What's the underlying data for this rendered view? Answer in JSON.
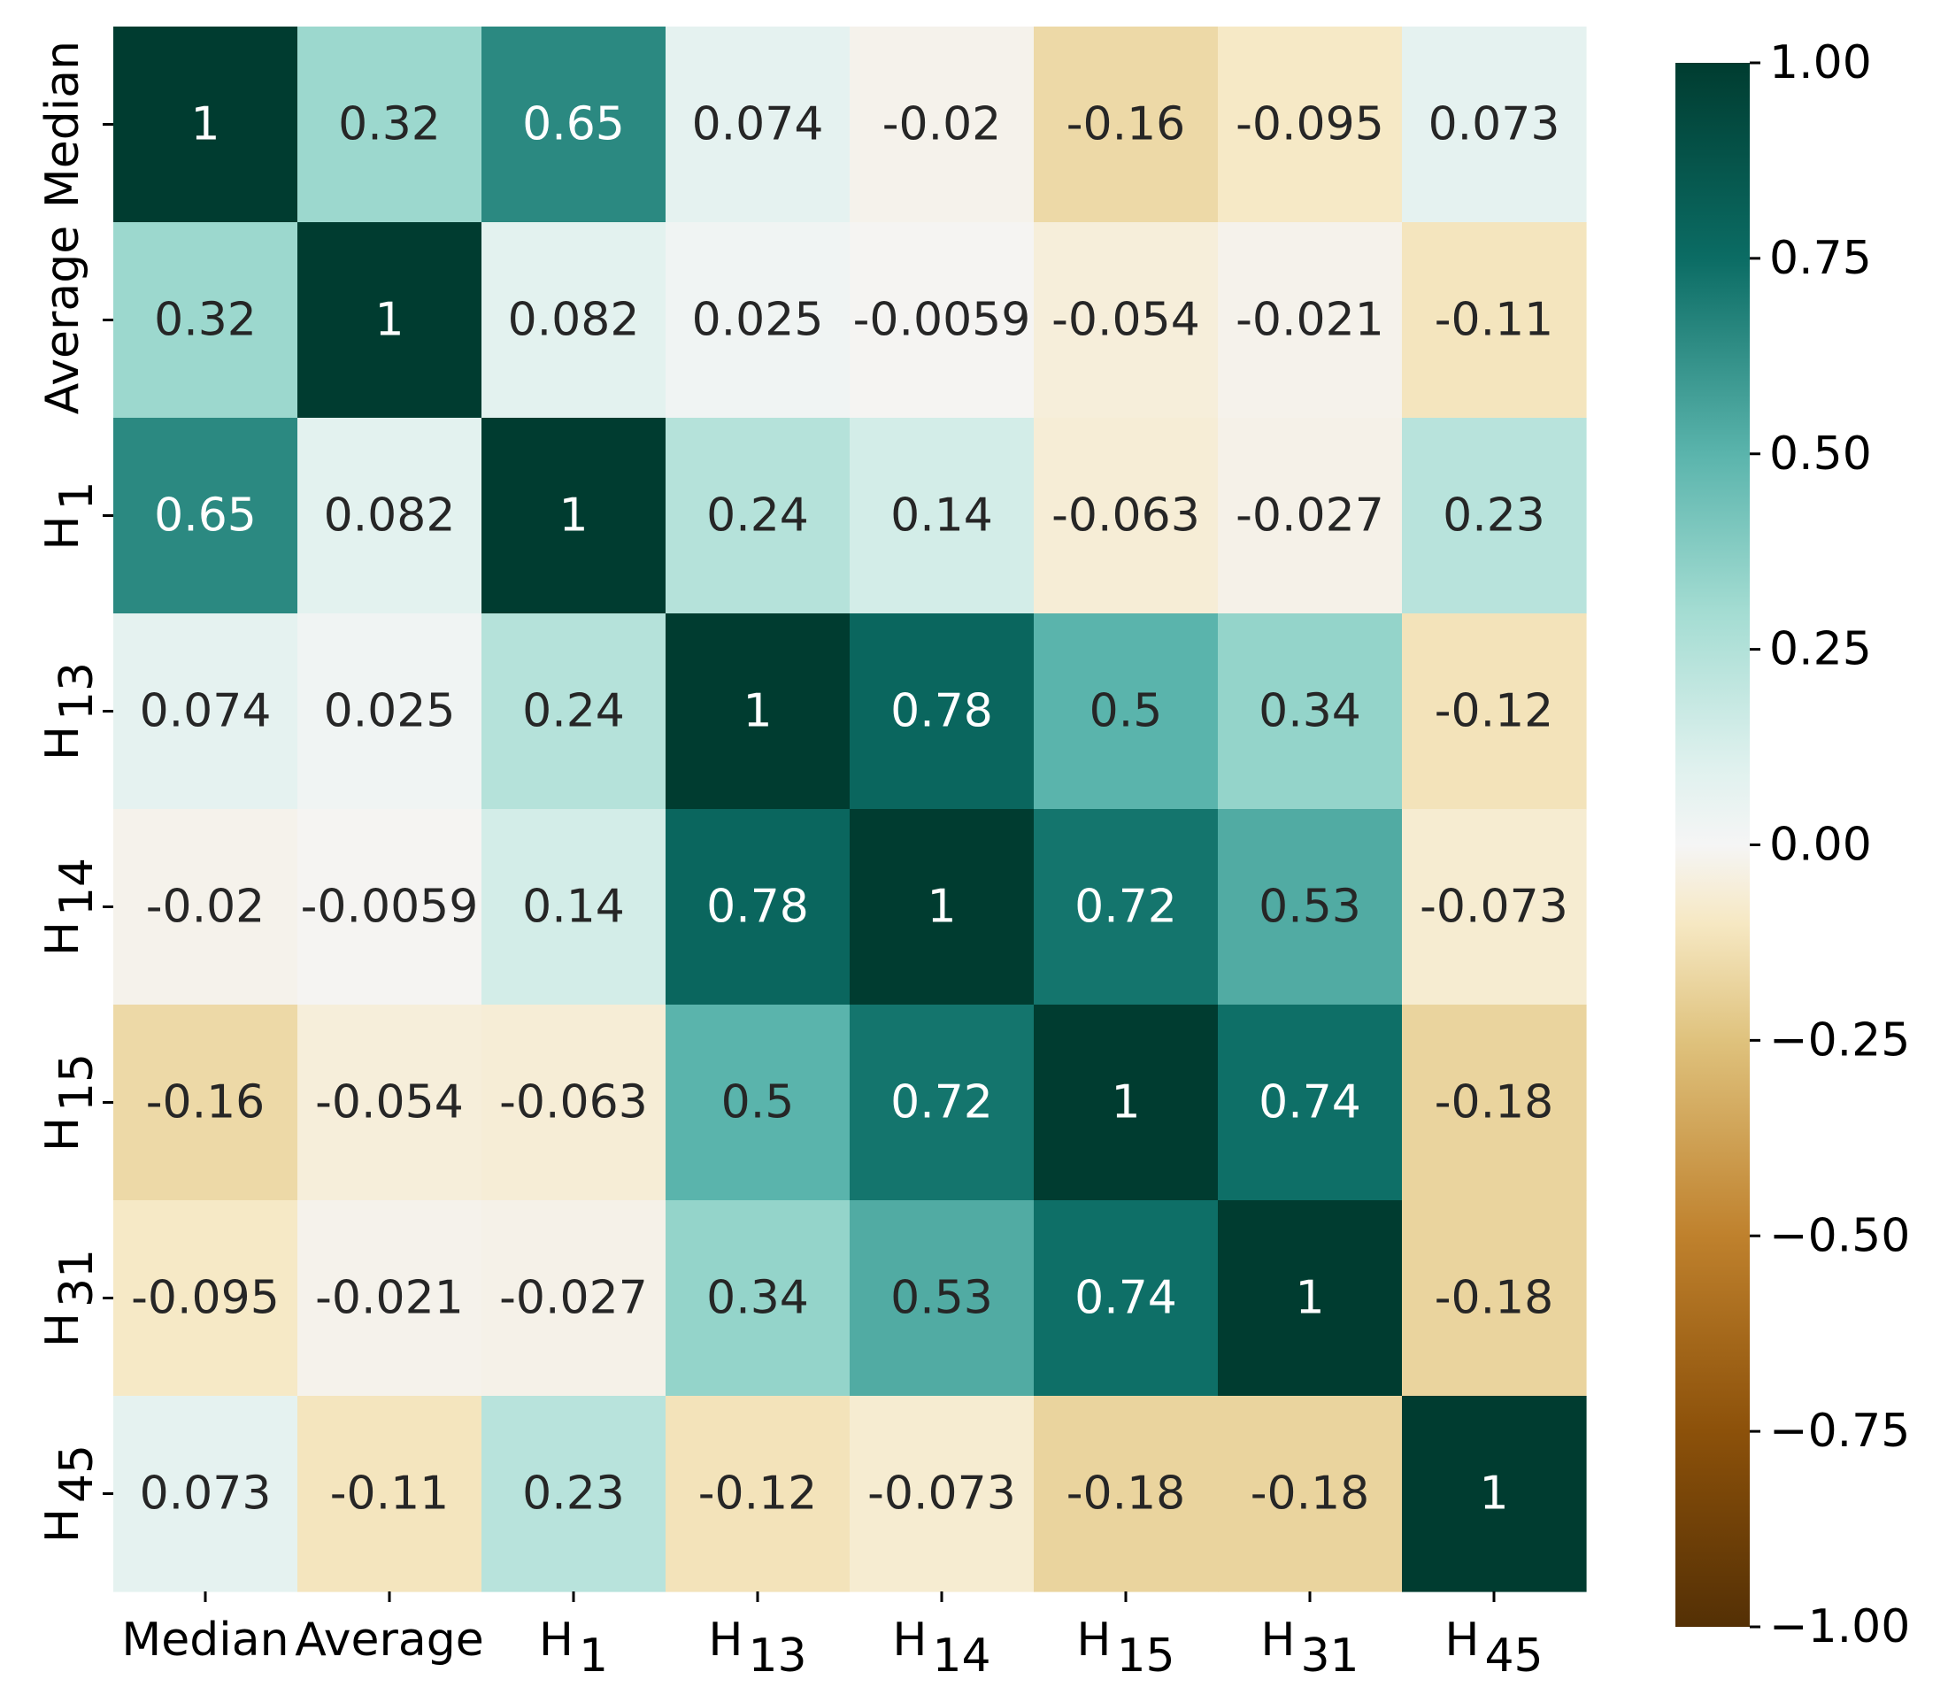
{
  "chart_data": {
    "type": "heatmap",
    "title": "",
    "rows": [
      {
        "main": "Median",
        "sub": ""
      },
      {
        "main": "Average",
        "sub": ""
      },
      {
        "main": "H",
        "sub": "1"
      },
      {
        "main": "H",
        "sub": "13"
      },
      {
        "main": "H",
        "sub": "14"
      },
      {
        "main": "H",
        "sub": "15"
      },
      {
        "main": "H",
        "sub": "31"
      },
      {
        "main": "H",
        "sub": "45"
      }
    ],
    "columns": [
      {
        "main": "Median",
        "sub": ""
      },
      {
        "main": "Average",
        "sub": ""
      },
      {
        "main": "H",
        "sub": "1"
      },
      {
        "main": "H",
        "sub": "13"
      },
      {
        "main": "H",
        "sub": "14"
      },
      {
        "main": "H",
        "sub": "15"
      },
      {
        "main": "H",
        "sub": "31"
      },
      {
        "main": "H",
        "sub": "45"
      }
    ],
    "values": [
      [
        1,
        0.32,
        0.65,
        0.074,
        -0.02,
        -0.16,
        -0.095,
        0.073
      ],
      [
        0.32,
        1,
        0.082,
        0.025,
        -0.0059,
        -0.054,
        -0.021,
        -0.11
      ],
      [
        0.65,
        0.082,
        1,
        0.24,
        0.14,
        -0.063,
        -0.027,
        0.23
      ],
      [
        0.074,
        0.025,
        0.24,
        1,
        0.78,
        0.5,
        0.34,
        -0.12
      ],
      [
        -0.02,
        -0.0059,
        0.14,
        0.78,
        1,
        0.72,
        0.53,
        -0.073
      ],
      [
        -0.16,
        -0.054,
        -0.063,
        0.5,
        0.72,
        1,
        0.74,
        -0.18
      ],
      [
        -0.095,
        -0.021,
        -0.027,
        0.34,
        0.53,
        0.74,
        1,
        -0.18
      ],
      [
        0.073,
        -0.11,
        0.23,
        -0.12,
        -0.073,
        -0.18,
        -0.18,
        1
      ]
    ],
    "annotations": [
      [
        "1",
        "0.32",
        "0.65",
        "0.074",
        "-0.02",
        "-0.16",
        "-0.095",
        "0.073"
      ],
      [
        "0.32",
        "1",
        "0.082",
        "0.025",
        "-0.0059",
        "-0.054",
        "-0.021",
        "-0.11"
      ],
      [
        "0.65",
        "0.082",
        "1",
        "0.24",
        "0.14",
        "-0.063",
        "-0.027",
        "0.23"
      ],
      [
        "0.074",
        "0.025",
        "0.24",
        "1",
        "0.78",
        "0.5",
        "0.34",
        "-0.12"
      ],
      [
        "-0.02",
        "-0.0059",
        "0.14",
        "0.78",
        "1",
        "0.72",
        "0.53",
        "-0.073"
      ],
      [
        "-0.16",
        "-0.054",
        "-0.063",
        "0.5",
        "0.72",
        "1",
        "0.74",
        "-0.18"
      ],
      [
        "-0.095",
        "-0.021",
        "-0.027",
        "0.34",
        "0.53",
        "0.74",
        "1",
        "-0.18"
      ],
      [
        "0.073",
        "-0.11",
        "0.23",
        "-0.12",
        "-0.073",
        "-0.18",
        "-0.18",
        "1"
      ]
    ],
    "colormap": {
      "name": "BrBG",
      "stops": [
        {
          "value": -1.0,
          "color": "#543005"
        },
        {
          "value": -0.75,
          "color": "#8c510a"
        },
        {
          "value": -0.5,
          "color": "#bf812d"
        },
        {
          "value": -0.25,
          "color": "#dfc27d"
        },
        {
          "value": -0.1,
          "color": "#f6e8c3"
        },
        {
          "value": 0.0,
          "color": "#f5f5f5"
        },
        {
          "value": 0.1,
          "color": "#dff1ee"
        },
        {
          "value": 0.3,
          "color": "#a3dcd2"
        },
        {
          "value": 0.5,
          "color": "#5ab4ac"
        },
        {
          "value": 0.75,
          "color": "#0b6c64"
        },
        {
          "value": 1.0,
          "color": "#003c30"
        }
      ]
    },
    "vmin": -1.0,
    "vmax": 1.0,
    "colorbar": {
      "ticks": [
        1.0,
        0.75,
        0.5,
        0.25,
        0.0,
        -0.25,
        -0.5,
        -0.75,
        -1.0
      ],
      "tick_labels": [
        "1.00",
        "0.75",
        "0.50",
        "0.25",
        "0.00",
        "−0.25",
        "−0.50",
        "−0.75",
        "−1.00"
      ],
      "position": "right"
    },
    "annotation_text_colors": {
      "light": "#ffffff",
      "dark": "#262626"
    }
  }
}
